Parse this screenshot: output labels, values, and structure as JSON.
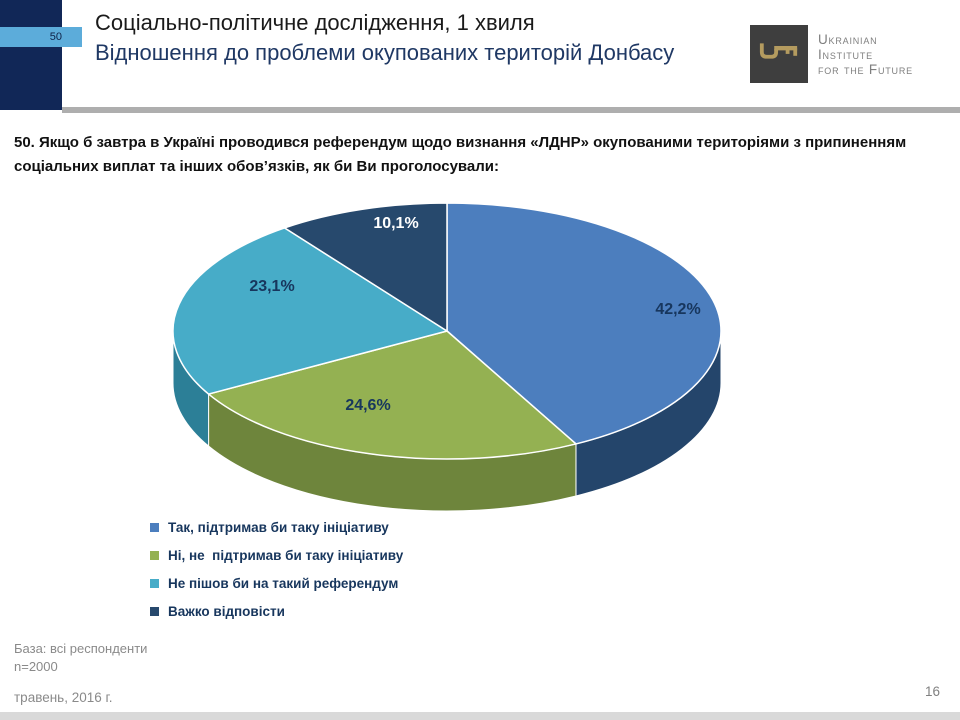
{
  "slide": {
    "tab_number": "50",
    "title": "Соціально-політичне дослідження, 1 хвиля",
    "subtitle": "Відношення до проблеми окупованих територій Донбасу",
    "question": "50. Якщо б завтра в Україні проводився референдум щодо визнання «ЛДНР» окупованими територіями з припиненням соціальних виплат та інших обов’язків, як би Ви проголосували:",
    "page_number": "16"
  },
  "logo": {
    "line1": "Ukrainian",
    "line2": "Institute",
    "line3": "for the Future",
    "box_color": "#3E3E3E",
    "key_color": "#B49B5F",
    "text_color": "#7F7F7F"
  },
  "footer": {
    "base_line1": "База: всі респонденти",
    "base_line2": "n=2000",
    "date": "травень, 2016 г."
  },
  "chart_data": {
    "type": "pie",
    "style": "3d",
    "start_angle_deg": 0,
    "direction": "clockwise-from-12-oclock",
    "legend_position": "bottom-left",
    "separator_color": "#FFFFFF",
    "slices": [
      {
        "label": "Так, підтримав би таку ініціативу",
        "value": 42.2,
        "value_label": "42,2%",
        "color": "#4C7EBE",
        "side_color": "#24456B",
        "label_color": "#17365D"
      },
      {
        "label": "Ні, не  підтримав би таку ініціативу",
        "value": 24.6,
        "value_label": "24,6%",
        "color": "#94B152",
        "side_color": "#6E853C",
        "label_color": "#17365D"
      },
      {
        "label": "Не пішов би на такий референдум",
        "value": 23.1,
        "value_label": "23,1%",
        "color": "#47ACC8",
        "side_color": "#2C7F97",
        "label_color": "#17365D"
      },
      {
        "label": "Важко відповісти",
        "value": 10.1,
        "value_label": "10,1%",
        "color": "#27496D",
        "side_color": "#152C44",
        "label_color": "#FFFFFF"
      }
    ]
  }
}
